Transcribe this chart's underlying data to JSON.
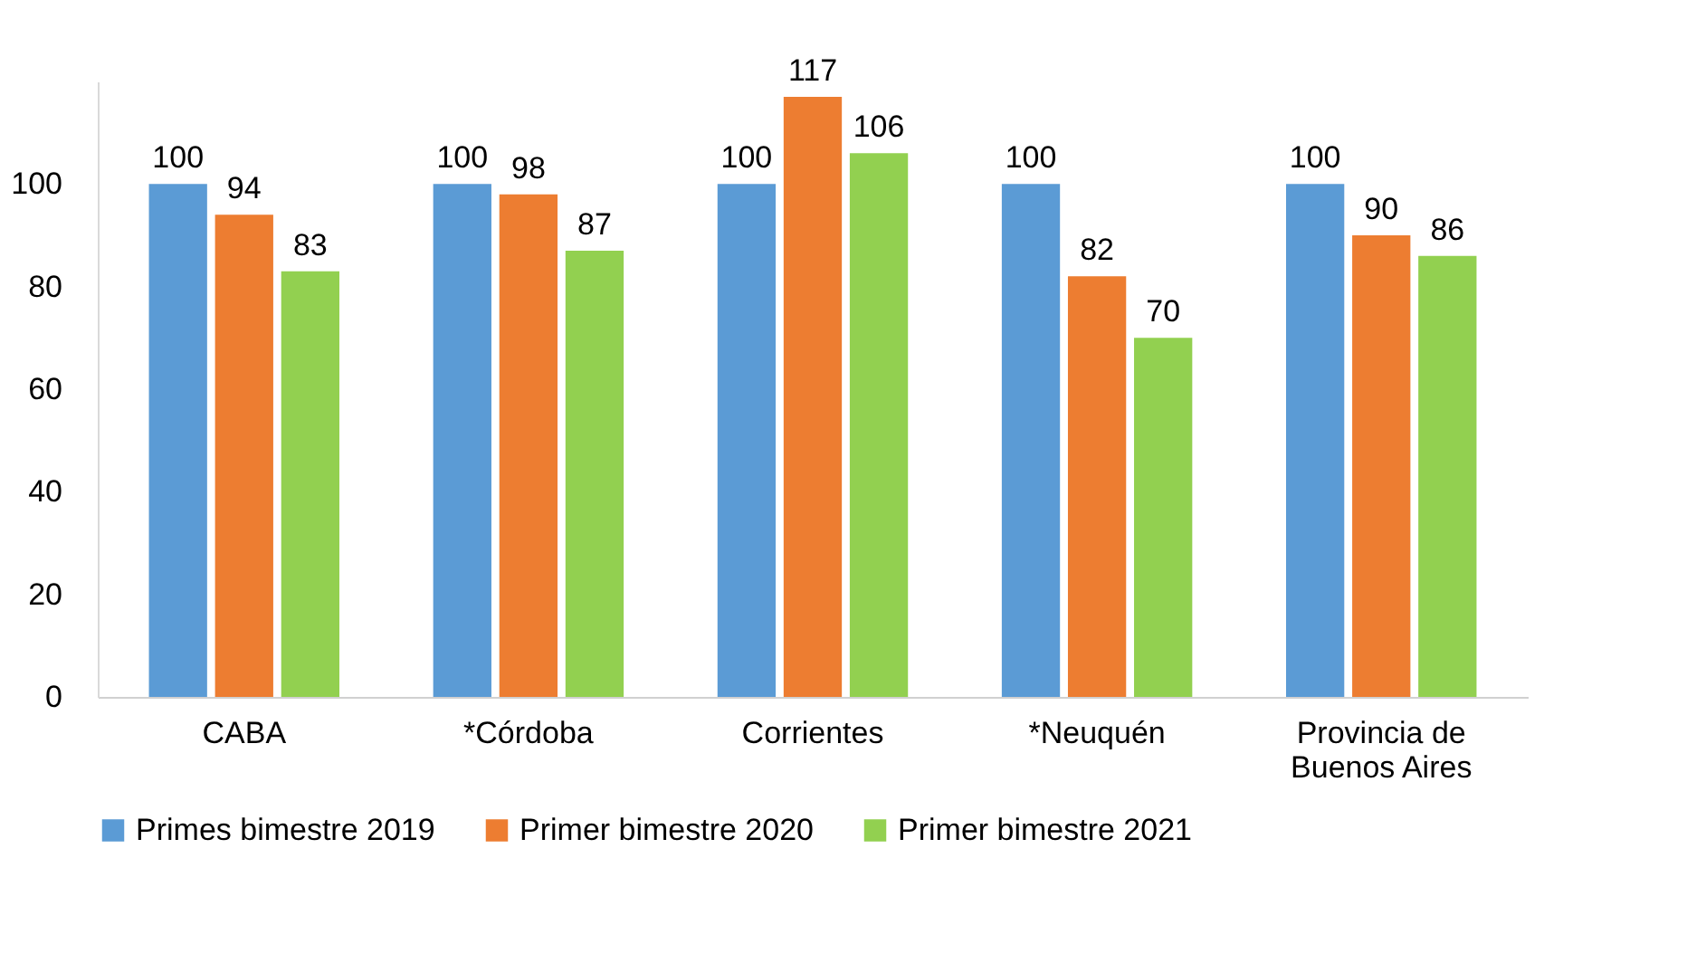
{
  "chart_data": {
    "type": "bar",
    "categories": [
      "CABA",
      "*Córdoba",
      "Corrientes",
      "*Neuquén",
      "Provincia de Buenos Aires"
    ],
    "series": [
      {
        "name": "Primes bimestre 2019",
        "color": "#5b9bd5",
        "values": [
          100,
          100,
          100,
          100,
          100
        ]
      },
      {
        "name": "Primer bimestre 2020",
        "color": "#ed7d31",
        "values": [
          94,
          98,
          117,
          82,
          90
        ]
      },
      {
        "name": "Primer bimestre 2021",
        "color": "#92d050",
        "values": [
          83,
          87,
          106,
          70,
          86
        ]
      }
    ],
    "ylim": [
      0,
      120
    ],
    "yticks": [
      0,
      20,
      40,
      60,
      80,
      100
    ],
    "grid": false,
    "legend": "bottom",
    "data_labels": true
  }
}
